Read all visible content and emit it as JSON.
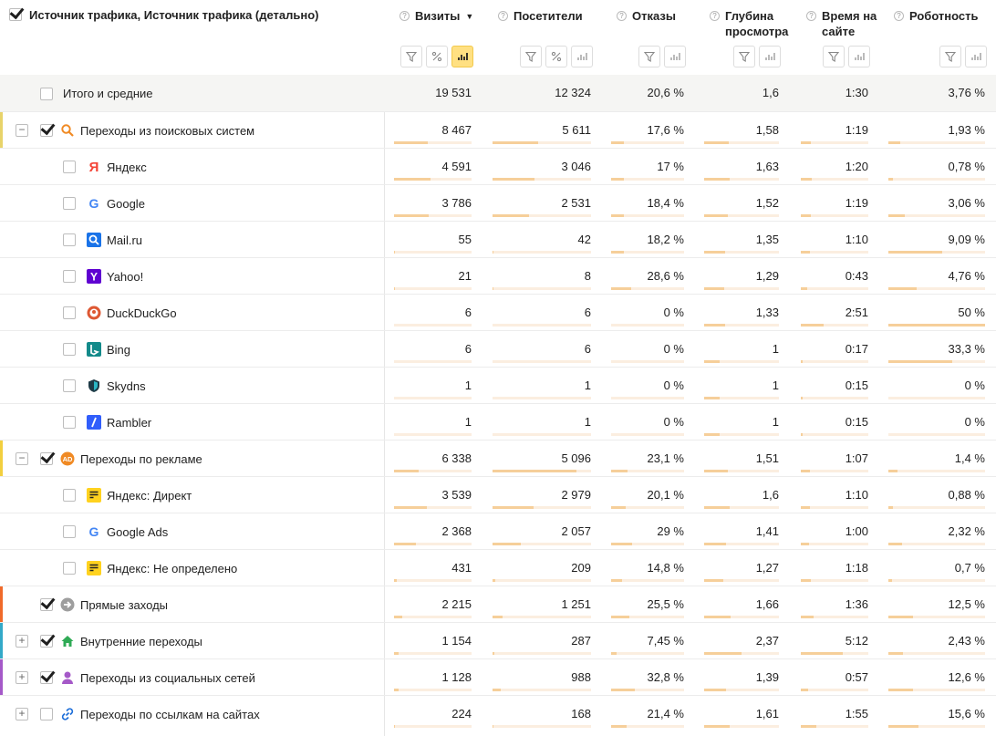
{
  "header": {
    "dimension_title": "Источник трафика, Источник трафика (детально)",
    "columns": [
      {
        "label": "Визиты",
        "sort": "▼",
        "tools": [
          "filter",
          "percent",
          "chart-on"
        ]
      },
      {
        "label": "Посетители",
        "tools": [
          "filter",
          "percent",
          "chart"
        ]
      },
      {
        "label": "Отказы",
        "tools": [
          "filter",
          "chart"
        ]
      },
      {
        "label": "Глубина просмотра",
        "tools": [
          "filter",
          "chart"
        ]
      },
      {
        "label": "Время на сайте",
        "tools": [
          "filter",
          "chart"
        ]
      },
      {
        "label": "Роботность",
        "tools": [
          "filter",
          "chart"
        ]
      }
    ]
  },
  "colors": {
    "accent_search": "#e8d36a",
    "accent_ads": "#f2cf3f",
    "accent_direct": "#f06a2a",
    "accent_internal": "#33a9c8",
    "accent_social": "#a559c8",
    "bar_fill": "#f6cf9a",
    "bar_track": "#fbeee0"
  },
  "total": {
    "label": "Итого и средние",
    "values": [
      "19 531",
      "12 324",
      "20,6 %",
      "1,6",
      "1:30",
      "3,76 %"
    ]
  },
  "rows": [
    {
      "label": "Переходы из поисковых систем",
      "level": 0,
      "icon": "search-icon",
      "checked": true,
      "toggle": "−",
      "accent": "#e8d36a",
      "values": [
        "8 467",
        "5 611",
        "17,6 %",
        "1,58",
        "1:19",
        "1,93 %"
      ],
      "bars": [
        0.43,
        0.46,
        0.18,
        0.33,
        0.15,
        0.12
      ]
    },
    {
      "label": "Яндекс",
      "level": 1,
      "icon": "yandex-icon",
      "checked": false,
      "values": [
        "4 591",
        "3 046",
        "17 %",
        "1,63",
        "1:20",
        "0,78 %"
      ],
      "bars": [
        0.47,
        0.43,
        0.17,
        0.34,
        0.16,
        0.05
      ]
    },
    {
      "label": "Google",
      "level": 1,
      "icon": "google-icon",
      "checked": false,
      "values": [
        "3 786",
        "2 531",
        "18,4 %",
        "1,52",
        "1:19",
        "3,06 %"
      ],
      "bars": [
        0.45,
        0.37,
        0.18,
        0.32,
        0.15,
        0.17
      ]
    },
    {
      "label": "Mail.ru",
      "level": 1,
      "icon": "mailru-icon",
      "checked": false,
      "values": [
        "55",
        "42",
        "18,2 %",
        "1,35",
        "1:10",
        "9,09 %"
      ],
      "bars": [
        0.01,
        0.01,
        0.18,
        0.28,
        0.14,
        0.56
      ]
    },
    {
      "label": "Yahoo!",
      "level": 1,
      "icon": "yahoo-icon",
      "checked": false,
      "values": [
        "21",
        "8",
        "28,6 %",
        "1,29",
        "0:43",
        "4,76 %"
      ],
      "bars": [
        0.01,
        0.01,
        0.28,
        0.27,
        0.09,
        0.29
      ]
    },
    {
      "label": "DuckDuckGo",
      "level": 1,
      "icon": "duckduckgo-icon",
      "checked": false,
      "values": [
        "6",
        "6",
        "0 %",
        "1,33",
        "2:51",
        "50 %"
      ],
      "bars": [
        0.0,
        0.0,
        0.0,
        0.28,
        0.34,
        1.0
      ]
    },
    {
      "label": "Bing",
      "level": 1,
      "icon": "bing-icon",
      "checked": false,
      "values": [
        "6",
        "6",
        "0 %",
        "1",
        "0:17",
        "33,3 %"
      ],
      "bars": [
        0.0,
        0.0,
        0.0,
        0.21,
        0.03,
        0.66
      ]
    },
    {
      "label": "Skydns",
      "level": 1,
      "icon": "skydns-icon",
      "checked": false,
      "values": [
        "1",
        "1",
        "0 %",
        "1",
        "0:15",
        "0 %"
      ],
      "bars": [
        0.0,
        0.0,
        0.0,
        0.21,
        0.03,
        0.0
      ]
    },
    {
      "label": "Rambler",
      "level": 1,
      "icon": "rambler-icon",
      "checked": false,
      "values": [
        "1",
        "1",
        "0 %",
        "1",
        "0:15",
        "0 %"
      ],
      "bars": [
        0.0,
        0.0,
        0.0,
        0.21,
        0.03,
        0.0
      ]
    },
    {
      "label": "Переходы по рекламе",
      "level": 0,
      "icon": "ad-icon",
      "checked": true,
      "toggle": "−",
      "accent": "#f2cf3f",
      "values": [
        "6 338",
        "5 096",
        "23,1 %",
        "1,51",
        "1:07",
        "1,4 %"
      ],
      "bars": [
        0.32,
        0.85,
        0.23,
        0.32,
        0.13,
        0.09
      ]
    },
    {
      "label": "Яндекс: Директ",
      "level": 1,
      "icon": "yandex-direct-icon",
      "checked": false,
      "values": [
        "3 539",
        "2 979",
        "20,1 %",
        "1,6",
        "1:10",
        "0,88 %"
      ],
      "bars": [
        0.42,
        0.42,
        0.2,
        0.34,
        0.14,
        0.05
      ]
    },
    {
      "label": "Google Ads",
      "level": 1,
      "icon": "google-icon",
      "checked": false,
      "values": [
        "2 368",
        "2 057",
        "29 %",
        "1,41",
        "1:00",
        "2,32 %"
      ],
      "bars": [
        0.28,
        0.29,
        0.29,
        0.29,
        0.12,
        0.14
      ]
    },
    {
      "label": "Яндекс: Не определено",
      "level": 1,
      "icon": "yandex-direct-icon",
      "checked": false,
      "values": [
        "431",
        "209",
        "14,8 %",
        "1,27",
        "1:18",
        "0,7 %"
      ],
      "bars": [
        0.03,
        0.03,
        0.15,
        0.26,
        0.15,
        0.04
      ]
    },
    {
      "label": "Прямые заходы",
      "level": 0,
      "icon": "direct-arrow-icon",
      "checked": true,
      "toggle": "",
      "accent": "#f06a2a",
      "values": [
        "2 215",
        "1 251",
        "25,5 %",
        "1,66",
        "1:36",
        "12,5 %"
      ],
      "bars": [
        0.11,
        0.1,
        0.25,
        0.35,
        0.19,
        0.25
      ]
    },
    {
      "label": "Внутренние переходы",
      "level": 0,
      "icon": "home-icon",
      "checked": true,
      "toggle": "+",
      "accent": "#33a9c8",
      "values": [
        "1 154",
        "287",
        "7,45 %",
        "2,37",
        "5:12",
        "2,43 %"
      ],
      "bars": [
        0.06,
        0.02,
        0.07,
        0.5,
        0.62,
        0.15
      ]
    },
    {
      "label": "Переходы из социальных сетей",
      "level": 0,
      "icon": "social-icon",
      "checked": true,
      "toggle": "+",
      "accent": "#a559c8",
      "values": [
        "1 128",
        "988",
        "32,8 %",
        "1,39",
        "0:57",
        "12,6 %"
      ],
      "bars": [
        0.06,
        0.08,
        0.32,
        0.29,
        0.11,
        0.25
      ]
    },
    {
      "label": "Переходы по ссылкам на сайтах",
      "level": 0,
      "icon": "link-icon",
      "checked": false,
      "toggle": "+",
      "accent": "",
      "values": [
        "224",
        "168",
        "21,4 %",
        "1,61",
        "1:55",
        "15,6 %"
      ],
      "bars": [
        0.01,
        0.01,
        0.21,
        0.34,
        0.23,
        0.31
      ]
    }
  ]
}
